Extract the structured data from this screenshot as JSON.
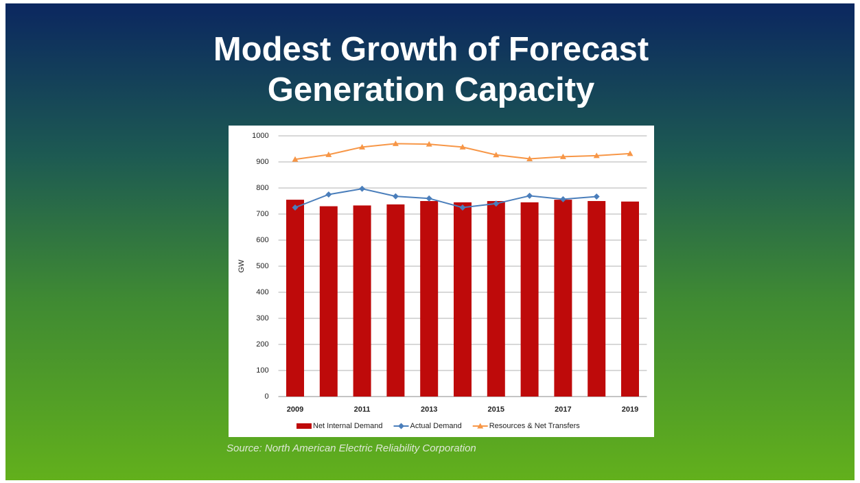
{
  "chart_data": {
    "type": "bar",
    "title": "Modest Growth of Forecast Generation Capacity",
    "source": "Source: North American Electric Reliability Corporation",
    "y_label": "GW",
    "categories": [
      "2009",
      null,
      "2011",
      null,
      "2013",
      null,
      "2015",
      null,
      "2017",
      null,
      "2019"
    ],
    "series": [
      {
        "name": "Net Internal Demand",
        "type": "bar",
        "color": "#be0a0a",
        "values": [
          755,
          730,
          733,
          737,
          750,
          745,
          750,
          745,
          755,
          750,
          748
        ]
      },
      {
        "name": "Actual Demand",
        "type": "line",
        "marker": "diamond",
        "color": "#4a7ebb",
        "values": [
          725,
          775,
          797,
          768,
          760,
          725,
          740,
          770,
          757,
          767,
          null
        ]
      },
      {
        "name": "Resources & Net Transfers",
        "type": "line",
        "marker": "triangle",
        "color": "#f79646",
        "values": [
          910,
          928,
          957,
          970,
          968,
          957,
          927,
          912,
          920,
          924,
          932
        ]
      }
    ],
    "ylim": [
      0,
      1000
    ],
    "yticks": [
      0,
      100,
      200,
      300,
      400,
      500,
      600,
      700,
      800,
      900,
      1000
    ],
    "grid": true,
    "legend": "bottom"
  }
}
